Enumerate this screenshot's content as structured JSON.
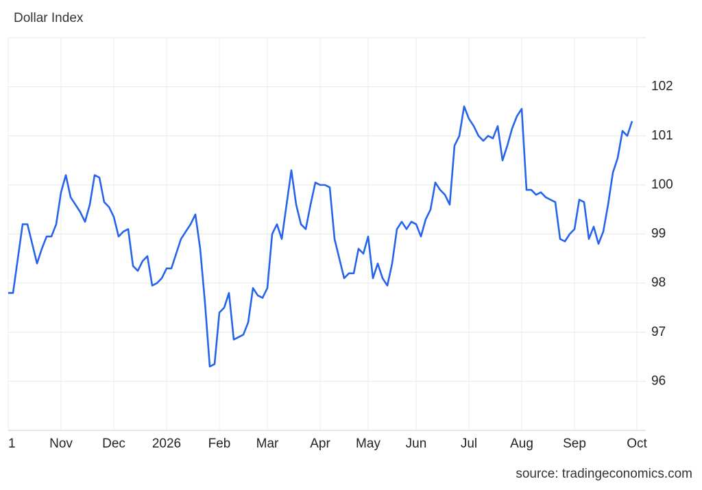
{
  "chart_data": {
    "type": "line",
    "title": "Dollar Index",
    "source": "source: tradingeconomics.com",
    "categories": [
      "1",
      null,
      null,
      null,
      null,
      null,
      null,
      null,
      null,
      null,
      null,
      "Nov",
      null,
      null,
      null,
      null,
      null,
      null,
      null,
      null,
      null,
      null,
      "Dec",
      null,
      null,
      null,
      null,
      null,
      null,
      null,
      null,
      null,
      null,
      "2026",
      null,
      null,
      null,
      null,
      null,
      null,
      null,
      null,
      null,
      null,
      "Feb",
      null,
      null,
      null,
      null,
      null,
      null,
      null,
      null,
      null,
      "Mar",
      null,
      null,
      null,
      null,
      null,
      null,
      null,
      null,
      null,
      null,
      "Apr",
      null,
      null,
      null,
      null,
      null,
      null,
      null,
      null,
      null,
      "May",
      null,
      null,
      null,
      null,
      null,
      null,
      null,
      null,
      null,
      "Jun",
      null,
      null,
      null,
      null,
      null,
      null,
      null,
      null,
      null,
      null,
      "Jul",
      null,
      null,
      null,
      null,
      null,
      null,
      null,
      null,
      null,
      null,
      "Aug",
      null,
      null,
      null,
      null,
      null,
      null,
      null,
      null,
      null,
      null,
      "Sep",
      null,
      null,
      null,
      null,
      null,
      null,
      null,
      null,
      null,
      null,
      null,
      null,
      "Oct"
    ],
    "values": [
      97.8,
      97.8,
      98.5,
      99.2,
      99.2,
      98.8,
      98.4,
      98.7,
      98.95,
      98.95,
      99.2,
      99.85,
      100.2,
      99.75,
      99.6,
      99.45,
      99.25,
      99.6,
      100.2,
      100.15,
      99.65,
      99.55,
      99.35,
      98.95,
      99.05,
      99.1,
      98.35,
      98.25,
      98.45,
      98.55,
      97.95,
      98.0,
      98.1,
      98.3,
      98.3,
      98.6,
      98.9,
      99.05,
      99.2,
      99.4,
      98.7,
      97.6,
      96.3,
      96.35,
      97.4,
      97.5,
      97.8,
      96.85,
      96.9,
      96.95,
      97.2,
      97.9,
      97.75,
      97.7,
      97.9,
      99.0,
      99.2,
      98.9,
      99.6,
      100.3,
      99.6,
      99.2,
      99.1,
      99.6,
      100.05,
      100.0,
      100.0,
      99.95,
      98.9,
      98.5,
      98.1,
      98.2,
      98.2,
      98.7,
      98.6,
      98.95,
      98.1,
      98.4,
      98.1,
      97.95,
      98.4,
      99.1,
      99.25,
      99.1,
      99.25,
      99.2,
      98.95,
      99.3,
      99.5,
      100.05,
      99.9,
      99.8,
      99.6,
      100.8,
      101.0,
      101.6,
      101.35,
      101.2,
      101.0,
      100.9,
      101.0,
      100.95,
      101.2,
      100.5,
      100.8,
      101.15,
      101.4,
      101.55,
      99.9,
      99.9,
      99.8,
      99.85,
      99.75,
      99.7,
      99.65,
      98.9,
      98.85,
      99.0,
      99.1,
      99.7,
      99.65,
      98.9,
      99.15,
      98.8,
      99.05,
      99.6,
      100.25,
      100.55,
      101.1,
      101.0,
      101.3,
      null
    ],
    "color": "#2563eb",
    "ylim": [
      95,
      103
    ],
    "yticks": [
      96,
      97,
      98,
      99,
      100,
      101,
      102
    ],
    "grid": true
  }
}
